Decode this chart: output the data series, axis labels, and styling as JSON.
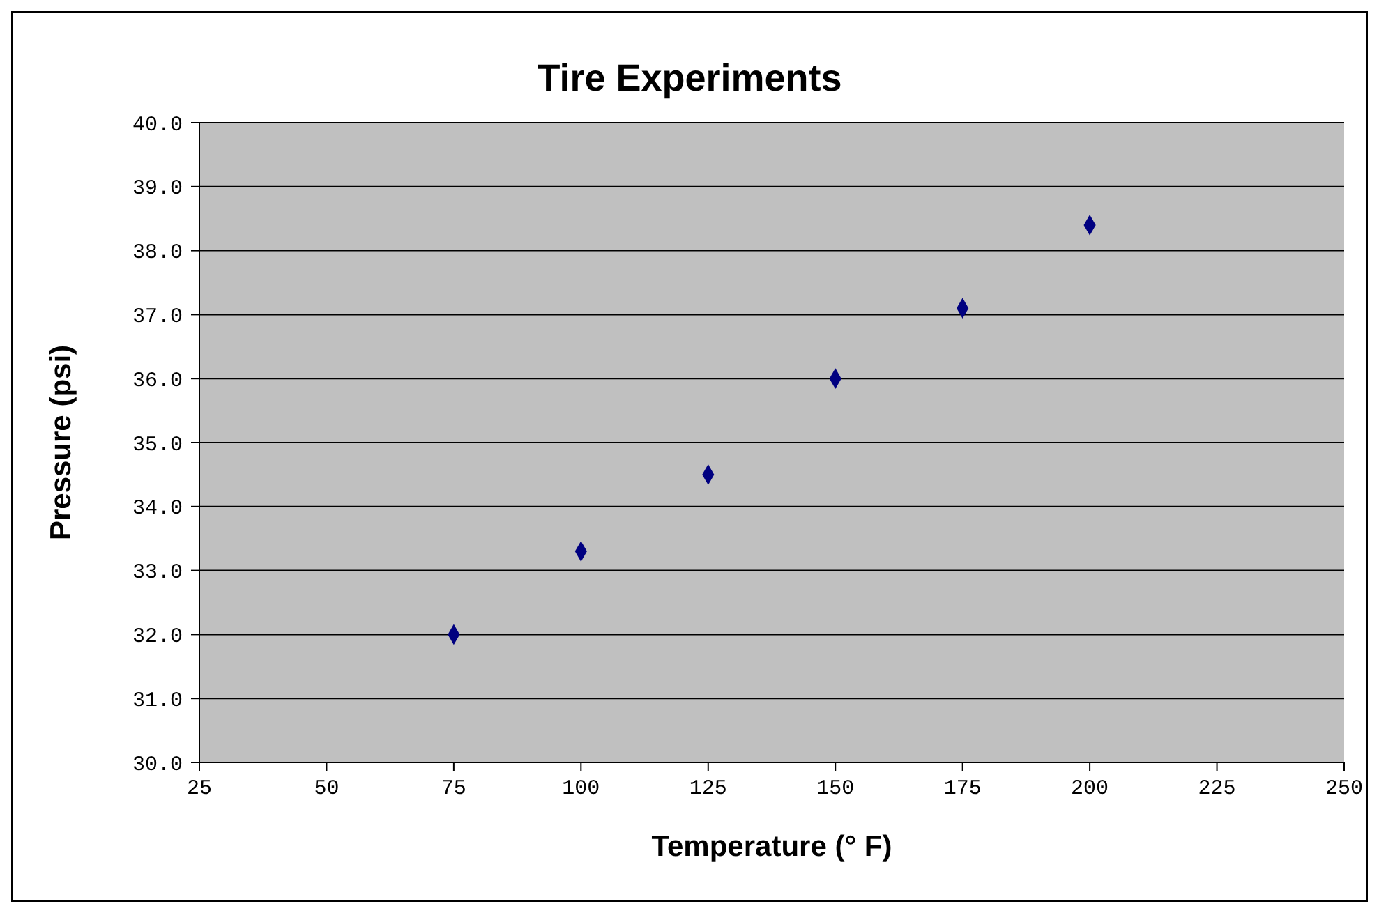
{
  "chart_data": {
    "type": "scatter",
    "title": "Tire Experiments",
    "xlabel": "Temperature (° F)",
    "ylabel": "Pressure (psi)",
    "x": [
      75,
      100,
      125,
      150,
      175,
      200
    ],
    "values": [
      32.0,
      33.3,
      34.5,
      36.0,
      37.1,
      38.4
    ],
    "color": "#000080",
    "marker": "diamond",
    "xlim": [
      25,
      250
    ],
    "xticks": [
      25,
      50,
      75,
      100,
      125,
      150,
      175,
      200,
      225,
      250
    ],
    "ylim": [
      30,
      40
    ],
    "yticks": [
      {
        "value": 30,
        "label": "30.0"
      },
      {
        "value": 31,
        "label": "31.0"
      },
      {
        "value": 32,
        "label": "32.0"
      },
      {
        "value": 33,
        "label": "33.0"
      },
      {
        "value": 34,
        "label": "34.0"
      },
      {
        "value": 35,
        "label": "35.0"
      },
      {
        "value": 36,
        "label": "36.0"
      },
      {
        "value": 37,
        "label": "37.0"
      },
      {
        "value": 38,
        "label": "38.0"
      },
      {
        "value": 39,
        "label": "39.0"
      },
      {
        "value": 40,
        "label": "40.0"
      }
    ],
    "grid": "y",
    "legend": false
  }
}
